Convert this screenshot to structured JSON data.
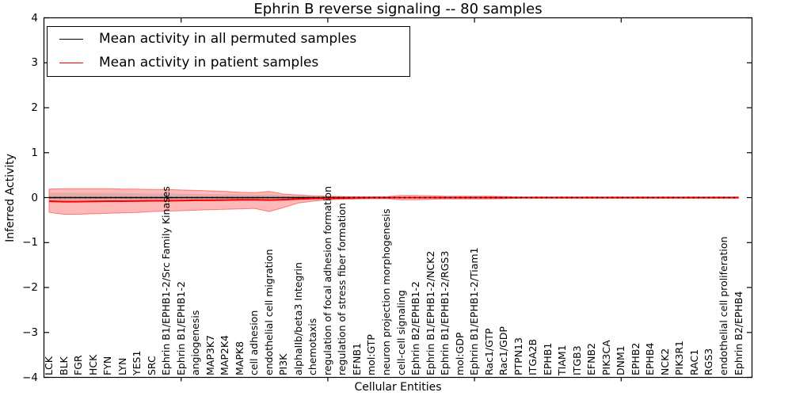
{
  "chart_data": {
    "type": "line",
    "title": "Ephrin B reverse signaling -- 80 samples",
    "xlabel": "Cellular Entities",
    "ylabel": "Inferred Activity",
    "ylim": [
      -4,
      4
    ],
    "ytick_values": [
      4,
      3,
      2,
      1,
      0,
      -1,
      -2,
      -3,
      -4
    ],
    "ytick_labels": [
      "4",
      "3",
      "2",
      "1",
      "0",
      "−1",
      "−2",
      "−3",
      "−4"
    ],
    "xtick_entity_positions": [
      10,
      20,
      30,
      40
    ],
    "grid": false,
    "legend": {
      "position": "upper-left",
      "entries": [
        {
          "label": "Mean activity in all permuted samples",
          "color": "#000000"
        },
        {
          "label": "Mean activity in patient samples",
          "color": "#ff0000"
        }
      ]
    },
    "categories": [
      "LCK",
      "BLK",
      "FGR",
      "HCK",
      "FYN",
      "LYN",
      "YES1",
      "SRC",
      "Ephrin B1/EPHB1-2/Src Family Kinases",
      "Ephrin B1/EPHB1-2",
      "angiogenesis",
      "MAP3K7",
      "MAP2K4",
      "MAPK8",
      "cell adhesion",
      "endothelial cell migration",
      "PI3K",
      "alphaIIb/beta3 Integrin",
      "chemotaxis",
      "regulation of focal adhesion formation",
      "regulation of stress fiber formation",
      "EFNB1",
      "mol:GTP",
      "neuron projection morphogenesis",
      "cell-cell signaling",
      "Ephrin B2/EPHB1-2",
      "Ephrin B1/EPHB1-2/NCK2",
      "Ephrin B1/EPHB1-2/RGS3",
      "mol:GDP",
      "Ephrin B1/EPHB1-2/Tiam1",
      "Rac1/GTP",
      "Rac1/GDP",
      "PTPN13",
      "ITGA2B",
      "EPHB1",
      "TIAM1",
      "ITGB3",
      "EFNB2",
      "PIK3CA",
      "DNM1",
      "EPHB2",
      "EPHB4",
      "NCK2",
      "PIK3R1",
      "RAC1",
      "RGS3",
      "endothelial cell proliferation",
      "Ephrin B2/EPHB4"
    ],
    "series": [
      {
        "name": "Mean activity in all permuted samples",
        "color": "#000000",
        "linestyle": "solid",
        "linewidth": 1.5,
        "values": [
          0,
          0,
          0,
          0,
          0,
          0,
          0,
          0,
          0,
          0,
          0,
          0,
          0,
          0,
          0,
          0,
          0,
          0,
          0,
          0,
          0,
          0,
          0,
          0,
          0,
          0,
          0,
          0,
          0,
          0,
          0,
          0,
          0,
          0,
          0,
          0,
          0,
          0,
          0,
          0,
          0,
          0,
          0,
          0,
          0,
          0,
          0,
          0
        ]
      },
      {
        "name": "Mean activity in patient samples",
        "color": "#ff0000",
        "linestyle": "solid",
        "linewidth": 2,
        "values": [
          -0.08,
          -0.09,
          -0.09,
          -0.085,
          -0.08,
          -0.08,
          -0.075,
          -0.07,
          -0.07,
          -0.065,
          -0.06,
          -0.06,
          -0.055,
          -0.05,
          -0.05,
          -0.055,
          -0.045,
          -0.03,
          -0.02,
          -0.015,
          -0.01,
          -0.005,
          0,
          0,
          0,
          0,
          0,
          0,
          0,
          0,
          0,
          0,
          0,
          0,
          0,
          0,
          0,
          0,
          0,
          0,
          0,
          0,
          0,
          0,
          0,
          0,
          0,
          0
        ]
      },
      {
        "name": "zero baseline",
        "color": "#000000",
        "linestyle": "dotted",
        "linewidth": 1.8,
        "values": [
          0,
          0,
          0,
          0,
          0,
          0,
          0,
          0,
          0,
          0,
          0,
          0,
          0,
          0,
          0,
          0,
          0,
          0,
          0,
          0,
          0,
          0,
          0,
          0,
          0,
          0,
          0,
          0,
          0,
          0,
          0,
          0,
          0,
          0,
          0,
          0,
          0,
          0,
          0,
          0,
          0,
          0,
          0,
          0,
          0,
          0,
          0,
          0
        ]
      }
    ],
    "bands": [
      {
        "name": "patient samples std band",
        "color": "#ff0000",
        "opacity": 0.28,
        "upper": [
          0.19,
          0.2,
          0.2,
          0.2,
          0.2,
          0.19,
          0.19,
          0.18,
          0.18,
          0.17,
          0.16,
          0.15,
          0.14,
          0.12,
          0.11,
          0.14,
          0.08,
          0.06,
          0.04,
          0.03,
          0.025,
          0.02,
          0.02,
          0.02,
          0.05,
          0.05,
          0.04,
          0.03,
          0.03,
          0.03,
          0.03,
          0.025,
          0.015,
          0.015,
          0.015,
          0.015,
          0.015,
          0.015,
          0.015,
          0.015,
          0.015,
          0.015,
          0.015,
          0.015,
          0.015,
          0.015,
          0.015,
          0.015
        ],
        "lower": [
          -0.33,
          -0.37,
          -0.37,
          -0.36,
          -0.35,
          -0.34,
          -0.33,
          -0.31,
          -0.3,
          -0.29,
          -0.28,
          -0.27,
          -0.26,
          -0.25,
          -0.24,
          -0.31,
          -0.22,
          -0.12,
          -0.08,
          -0.05,
          -0.04,
          -0.03,
          -0.025,
          -0.025,
          -0.05,
          -0.05,
          -0.04,
          -0.03,
          -0.03,
          -0.03,
          -0.03,
          -0.025,
          -0.015,
          -0.015,
          -0.015,
          -0.015,
          -0.015,
          -0.015,
          -0.015,
          -0.015,
          -0.015,
          -0.015,
          -0.015,
          -0.015,
          -0.015,
          -0.015,
          -0.015,
          -0.015
        ]
      },
      {
        "name": "permuted samples std band",
        "color": "#808080",
        "opacity": 0.22,
        "upper": [
          0.11,
          0.11,
          0.105,
          0.105,
          0.1,
          0.1,
          0.095,
          0.09,
          0.09,
          0.085,
          0.08,
          0.078,
          0.075,
          0.07,
          0.065,
          0.07,
          0.055,
          0.04,
          0.03,
          0.025,
          0.02,
          0.018,
          0.015,
          0.015,
          0.015,
          0.015,
          0.01,
          0.01,
          0.01,
          0.01,
          0.01,
          0.01,
          0.01,
          0.01,
          0.01,
          0.01,
          0.01,
          0.01,
          0.01,
          0.01,
          0.01,
          0.01,
          0.01,
          0.01,
          0.01,
          0.01,
          0.01,
          0.01
        ],
        "lower": [
          -0.11,
          -0.11,
          -0.105,
          -0.105,
          -0.1,
          -0.1,
          -0.095,
          -0.09,
          -0.09,
          -0.085,
          -0.08,
          -0.078,
          -0.075,
          -0.07,
          -0.065,
          -0.07,
          -0.055,
          -0.04,
          -0.03,
          -0.025,
          -0.02,
          -0.018,
          -0.015,
          -0.015,
          -0.015,
          -0.015,
          -0.01,
          -0.01,
          -0.01,
          -0.01,
          -0.01,
          -0.01,
          -0.01,
          -0.01,
          -0.01,
          -0.01,
          -0.01,
          -0.01,
          -0.01,
          -0.01,
          -0.01,
          -0.01,
          -0.01,
          -0.01,
          -0.01,
          -0.01,
          -0.01,
          -0.01
        ]
      }
    ]
  }
}
